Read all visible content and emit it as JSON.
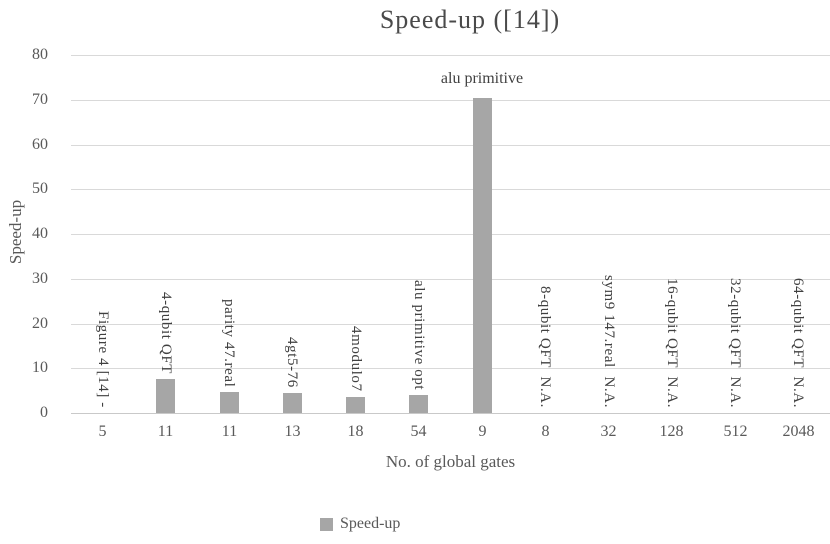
{
  "chart_data": {
    "type": "bar",
    "title": "Speed-up ([14])",
    "xlabel": "No. of global gates",
    "ylabel": "Speed-up",
    "ylim": [
      0,
      80
    ],
    "ytick_step": 10,
    "yticks": [
      0,
      10,
      20,
      30,
      40,
      50,
      60,
      70,
      80
    ],
    "grid": true,
    "legend": {
      "label": "Speed-up",
      "position": "bottom"
    },
    "categories": [
      "5",
      "11",
      "11",
      "13",
      "18",
      "54",
      "9",
      "8",
      "32",
      "128",
      "512",
      "2048"
    ],
    "series": [
      {
        "name": "Speed-up",
        "values": [
          0,
          7.5,
          4.7,
          4.4,
          3.6,
          4.1,
          70.5,
          0,
          0,
          0,
          0,
          0
        ]
      }
    ],
    "bar_labels": [
      "Figure 4 [14] -",
      "4-qubit QFT",
      "parity 47.real",
      "4gt5-76",
      "4modulo7",
      "alu primitive opt",
      "alu primitive",
      "8-qubit QFT  N.A.",
      "sym9 147.real  N.A.",
      "16-qubit QFT  N.A.",
      "32-qubit QFT  N.A.",
      "64-qubit QFT  N.A."
    ],
    "bar_label_orientation": [
      "vertical",
      "vertical",
      "vertical",
      "vertical",
      "vertical",
      "vertical",
      "horizontal",
      "vertical",
      "vertical",
      "vertical",
      "vertical",
      "vertical"
    ],
    "colors": {
      "bar": "#a6a6a6",
      "gridline": "#d9d9d9",
      "axis_line": "#c9c9c9",
      "tick_text": "#595959",
      "label_text": "#404040",
      "title_text": "#4a4a4a",
      "background": "#ffffff"
    }
  }
}
